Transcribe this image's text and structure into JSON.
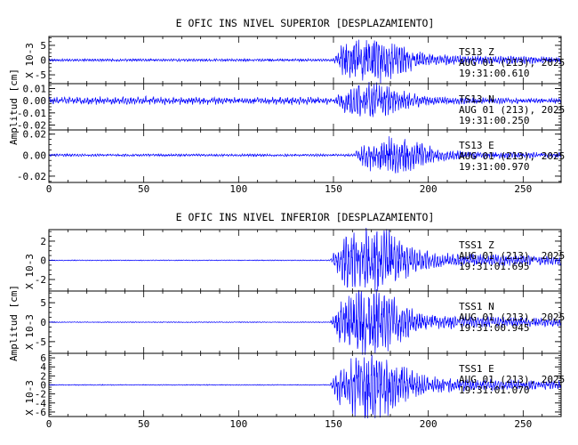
{
  "figures": [
    {
      "title": "E OFIC INS NIVEL SUPERIOR [DESPLAZAMIENTO]",
      "ylabel": "Amplitud [cm]",
      "panels": [
        {
          "ymin": -8,
          "ymax": 8,
          "scale_label": "X 10-3",
          "ticks": [
            {
              "v": 5,
              "t": "5"
            },
            {
              "v": 0,
              "t": "0"
            },
            {
              "v": -5,
              "t": "-5"
            }
          ],
          "station": "TS13",
          "component": "Z",
          "date": "AUG 01 (213), 2025",
          "time": "19:31:00.610",
          "amplitude": 7,
          "onset": 149,
          "pre_noise": 0.12,
          "seed": 11
        },
        {
          "ymin": -0.024,
          "ymax": 0.014,
          "scale_label": "",
          "ticks": [
            {
              "v": 0.01,
              "t": "0.01"
            },
            {
              "v": 0.0,
              "t": "0.00"
            },
            {
              "v": -0.01,
              "t": "-0.01"
            },
            {
              "v": -0.02,
              "t": "-0.02"
            }
          ],
          "station": "TS13",
          "component": "N",
          "date": "AUG 01 (213), 2025",
          "time": "19:31:00.250",
          "amplitude": 0.012,
          "onset": 149,
          "pre_noise": 0.3,
          "seed": 23
        },
        {
          "ymin": -0.026,
          "ymax": 0.024,
          "scale_label": "",
          "ticks": [
            {
              "v": 0.02,
              "t": "0.02"
            },
            {
              "v": 0.0,
              "t": "0.00"
            },
            {
              "v": -0.02,
              "t": "-0.02"
            }
          ],
          "station": "TS13",
          "component": "E",
          "date": "AUG 01 (213), 2025",
          "time": "19:31:00.970",
          "amplitude": 0.015,
          "onset": 160,
          "pre_noise": 0.15,
          "seed": 37
        }
      ]
    },
    {
      "title": "E OFIC INS NIVEL INFERIOR [DESPLAZAMIENTO]",
      "ylabel": "Amplitud [cm]",
      "panels": [
        {
          "ymin": -3.2,
          "ymax": 3.2,
          "scale_label": "X 10-3",
          "ticks": [
            {
              "v": 2,
              "t": "2"
            },
            {
              "v": 0,
              "t": "0"
            },
            {
              "v": -2,
              "t": "-2"
            }
          ],
          "station": "TSS1",
          "component": "Z",
          "date": "AUG 01 (213), 2025",
          "time": "19:31:01.695",
          "amplitude": 3.0,
          "onset": 148,
          "pre_noise": 0.03,
          "seed": 51
        },
        {
          "ymin": -8,
          "ymax": 8,
          "scale_label": "X 10-3",
          "ticks": [
            {
              "v": 5,
              "t": "5"
            },
            {
              "v": 0,
              "t": "0"
            },
            {
              "v": -5,
              "t": "-5"
            }
          ],
          "station": "TSS1",
          "component": "N",
          "date": "AUG 01 (213), 2025",
          "time": "19:31:00.945",
          "amplitude": 7,
          "onset": 148,
          "pre_noise": 0.03,
          "seed": 63
        },
        {
          "ymin": -7,
          "ymax": 7,
          "scale_label": "X 10-3",
          "ticks": [
            {
              "v": 6,
              "t": "6"
            },
            {
              "v": 4,
              "t": "4"
            },
            {
              "v": 2,
              "t": "2"
            },
            {
              "v": 0,
              "t": "0"
            },
            {
              "v": -2,
              "t": "-2"
            },
            {
              "v": -4,
              "t": "-4"
            },
            {
              "v": -6,
              "t": "-6"
            }
          ],
          "station": "TSS1",
          "component": "E",
          "date": "AUG 01 (213), 2025",
          "time": "19:31:01.070",
          "amplitude": 6.5,
          "onset": 148,
          "pre_noise": 0.03,
          "seed": 79
        }
      ]
    }
  ],
  "chart_data": {
    "type": "line",
    "x_ticks": [
      0,
      50,
      100,
      150,
      200,
      250
    ],
    "xlim": [
      0,
      270
    ],
    "series_color": "#0000ff",
    "axis_color": "#000000",
    "plots": [
      {
        "title": "E OFIC INS NIVEL SUPERIOR [DESPLAZAMIENTO]",
        "ylabel": "Amplitud [cm]",
        "series": [
          {
            "name": "TS13 Z",
            "units_multiplier": "X 10-3",
            "ylim": [
              -8,
              8
            ],
            "onset_s": 149
          },
          {
            "name": "TS13 N",
            "ylim": [
              -0.024,
              0.014
            ],
            "onset_s": 149
          },
          {
            "name": "TS13 E",
            "ylim": [
              -0.026,
              0.024
            ],
            "onset_s": 160
          }
        ]
      },
      {
        "title": "E OFIC INS NIVEL INFERIOR [DESPLAZAMIENTO]",
        "ylabel": "Amplitud [cm]",
        "series": [
          {
            "name": "TSS1 Z",
            "units_multiplier": "X 10-3",
            "ylim": [
              -3.2,
              3.2
            ],
            "onset_s": 148
          },
          {
            "name": "TSS1 N",
            "units_multiplier": "X 10-3",
            "ylim": [
              -8,
              8
            ],
            "onset_s": 148
          },
          {
            "name": "TSS1 E",
            "units_multiplier": "X 10-3",
            "ylim": [
              -7,
              7
            ],
            "onset_s": 148
          }
        ]
      }
    ]
  }
}
